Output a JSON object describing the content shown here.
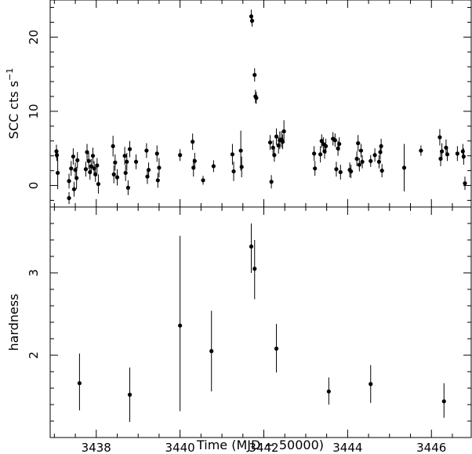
{
  "chart_data": [
    {
      "type": "scatter",
      "ylabel": "SCC cts s",
      "ylabel_superscript": "−1",
      "xlim": [
        3436.9,
        3446.95
      ],
      "ylim": [
        -2.9,
        25.0
      ],
      "yticks": [
        0,
        10,
        20
      ],
      "error_bars": true,
      "points": [
        {
          "x": 3437.05,
          "y": 4.6,
          "e": 0.9
        },
        {
          "x": 3437.08,
          "y": 1.7,
          "e": 2.2
        },
        {
          "x": 3437.06,
          "y": 4.1,
          "e": 0.8
        },
        {
          "x": 3437.35,
          "y": -1.7,
          "e": 0.8
        },
        {
          "x": 3437.35,
          "y": 0.6,
          "e": 1.0
        },
        {
          "x": 3437.4,
          "y": 2.3,
          "e": 1.0
        },
        {
          "x": 3437.45,
          "y": 3.9,
          "e": 1.1
        },
        {
          "x": 3437.47,
          "y": -0.5,
          "e": 1.0
        },
        {
          "x": 3437.5,
          "y": 2.1,
          "e": 1.0
        },
        {
          "x": 3437.53,
          "y": 1.0,
          "e": 1.5
        },
        {
          "x": 3437.55,
          "y": 3.4,
          "e": 1.1
        },
        {
          "x": 3437.75,
          "y": 2.2,
          "e": 1.0
        },
        {
          "x": 3437.78,
          "y": 4.5,
          "e": 1.1
        },
        {
          "x": 3437.82,
          "y": 3.3,
          "e": 1.1
        },
        {
          "x": 3437.85,
          "y": 1.8,
          "e": 1.0
        },
        {
          "x": 3437.88,
          "y": 2.6,
          "e": 1.0
        },
        {
          "x": 3437.92,
          "y": 4.0,
          "e": 1.1
        },
        {
          "x": 3437.95,
          "y": 2.3,
          "e": 1.0
        },
        {
          "x": 3437.98,
          "y": 1.5,
          "e": 1.0
        },
        {
          "x": 3438.02,
          "y": 2.7,
          "e": 1.0
        },
        {
          "x": 3438.05,
          "y": 0.2,
          "e": 1.3
        },
        {
          "x": 3438.4,
          "y": 5.3,
          "e": 1.4
        },
        {
          "x": 3438.42,
          "y": 1.5,
          "e": 1.2
        },
        {
          "x": 3438.45,
          "y": 3.1,
          "e": 1.1
        },
        {
          "x": 3438.5,
          "y": 1.1,
          "e": 1.1
        },
        {
          "x": 3438.68,
          "y": 4.0,
          "e": 1.2
        },
        {
          "x": 3438.7,
          "y": 1.7,
          "e": 1.1
        },
        {
          "x": 3438.73,
          "y": 3.2,
          "e": 1.2
        },
        {
          "x": 3438.76,
          "y": -0.3,
          "e": 1.0
        },
        {
          "x": 3438.8,
          "y": 4.9,
          "e": 1.1
        },
        {
          "x": 3438.95,
          "y": 3.2,
          "e": 1.0
        },
        {
          "x": 3439.2,
          "y": 4.7,
          "e": 1.0
        },
        {
          "x": 3439.22,
          "y": 1.2,
          "e": 1.0
        },
        {
          "x": 3439.25,
          "y": 2.1,
          "e": 1.0
        },
        {
          "x": 3439.45,
          "y": 4.3,
          "e": 1.1
        },
        {
          "x": 3439.47,
          "y": 0.7,
          "e": 1.0
        },
        {
          "x": 3439.5,
          "y": 2.4,
          "e": 1.3
        },
        {
          "x": 3440.0,
          "y": 4.1,
          "e": 0.8
        },
        {
          "x": 3440.3,
          "y": 5.9,
          "e": 1.1
        },
        {
          "x": 3440.32,
          "y": 2.4,
          "e": 1.2
        },
        {
          "x": 3440.35,
          "y": 3.3,
          "e": 1.1
        },
        {
          "x": 3440.55,
          "y": 0.7,
          "e": 0.6
        },
        {
          "x": 3440.8,
          "y": 2.6,
          "e": 0.8
        },
        {
          "x": 3441.25,
          "y": 4.2,
          "e": 1.4
        },
        {
          "x": 3441.28,
          "y": 1.9,
          "e": 1.3
        },
        {
          "x": 3441.45,
          "y": 4.7,
          "e": 2.7
        },
        {
          "x": 3441.47,
          "y": 2.5,
          "e": 1.4
        },
        {
          "x": 3441.7,
          "y": 22.8,
          "e": 0.9
        },
        {
          "x": 3441.72,
          "y": 22.2,
          "e": 0.8
        },
        {
          "x": 3441.78,
          "y": 14.9,
          "e": 0.9
        },
        {
          "x": 3441.8,
          "y": 12.0,
          "e": 0.9
        },
        {
          "x": 3441.82,
          "y": 11.8,
          "e": 0.8
        },
        {
          "x": 3442.15,
          "y": 5.8,
          "e": 1.0
        },
        {
          "x": 3442.18,
          "y": 0.5,
          "e": 0.9
        },
        {
          "x": 3442.22,
          "y": 5.1,
          "e": 1.0
        },
        {
          "x": 3442.25,
          "y": 4.1,
          "e": 0.9
        },
        {
          "x": 3442.3,
          "y": 6.6,
          "e": 1.1
        },
        {
          "x": 3442.35,
          "y": 5.4,
          "e": 1.1
        },
        {
          "x": 3442.38,
          "y": 6.1,
          "e": 1.2
        },
        {
          "x": 3442.42,
          "y": 6.2,
          "e": 1.1
        },
        {
          "x": 3442.45,
          "y": 5.9,
          "e": 1.0
        },
        {
          "x": 3442.48,
          "y": 7.3,
          "e": 1.5
        },
        {
          "x": 3443.2,
          "y": 4.3,
          "e": 1.0
        },
        {
          "x": 3443.22,
          "y": 2.3,
          "e": 1.0
        },
        {
          "x": 3443.35,
          "y": 4.2,
          "e": 1.1
        },
        {
          "x": 3443.38,
          "y": 6.0,
          "e": 0.9
        },
        {
          "x": 3443.42,
          "y": 5.6,
          "e": 0.9
        },
        {
          "x": 3443.45,
          "y": 4.6,
          "e": 1.0
        },
        {
          "x": 3443.48,
          "y": 5.3,
          "e": 1.0
        },
        {
          "x": 3443.65,
          "y": 6.3,
          "e": 0.9
        },
        {
          "x": 3443.7,
          "y": 6.1,
          "e": 0.9
        },
        {
          "x": 3443.73,
          "y": 2.2,
          "e": 1.0
        },
        {
          "x": 3443.77,
          "y": 5.0,
          "e": 1.0
        },
        {
          "x": 3443.8,
          "y": 5.6,
          "e": 0.9
        },
        {
          "x": 3443.83,
          "y": 1.8,
          "e": 1.0
        },
        {
          "x": 3444.05,
          "y": 2.1,
          "e": 1.0
        },
        {
          "x": 3444.08,
          "y": 1.9,
          "e": 0.9
        },
        {
          "x": 3444.22,
          "y": 3.6,
          "e": 1.0
        },
        {
          "x": 3444.25,
          "y": 5.7,
          "e": 1.1
        },
        {
          "x": 3444.28,
          "y": 2.8,
          "e": 0.9
        },
        {
          "x": 3444.32,
          "y": 4.7,
          "e": 0.9
        },
        {
          "x": 3444.35,
          "y": 3.2,
          "e": 0.9
        },
        {
          "x": 3444.55,
          "y": 3.3,
          "e": 0.8
        },
        {
          "x": 3444.65,
          "y": 4.1,
          "e": 0.9
        },
        {
          "x": 3444.75,
          "y": 3.2,
          "e": 0.9
        },
        {
          "x": 3444.78,
          "y": 4.5,
          "e": 1.0
        },
        {
          "x": 3444.8,
          "y": 5.3,
          "e": 1.0
        },
        {
          "x": 3444.82,
          "y": 2.0,
          "e": 0.9
        },
        {
          "x": 3445.35,
          "y": 2.4,
          "e": 3.2
        },
        {
          "x": 3445.75,
          "y": 4.7,
          "e": 0.7
        },
        {
          "x": 3446.2,
          "y": 6.5,
          "e": 1.1
        },
        {
          "x": 3446.22,
          "y": 3.6,
          "e": 1.0
        },
        {
          "x": 3446.25,
          "y": 4.6,
          "e": 1.1
        },
        {
          "x": 3446.35,
          "y": 5.1,
          "e": 1.1
        },
        {
          "x": 3446.38,
          "y": 4.2,
          "e": 0.9
        },
        {
          "x": 3446.62,
          "y": 4.3,
          "e": 1.0
        },
        {
          "x": 3446.75,
          "y": 4.6,
          "e": 1.0
        },
        {
          "x": 3446.77,
          "y": 3.9,
          "e": 1.1
        },
        {
          "x": 3446.8,
          "y": 0.3,
          "e": 0.9
        }
      ]
    },
    {
      "type": "scatter",
      "xlabel": "Time (MJD − 50000)",
      "ylabel": "hardness",
      "xlim": [
        3436.9,
        3446.95
      ],
      "ylim": [
        1.0,
        3.8
      ],
      "xticks": [
        3438,
        3440,
        3442,
        3444,
        3446
      ],
      "yticks": [
        2,
        3
      ],
      "error_bars": true,
      "points": [
        {
          "x": 3437.6,
          "y": 1.66,
          "lo": 1.33,
          "hi": 2.02
        },
        {
          "x": 3438.8,
          "y": 1.52,
          "lo": 1.19,
          "hi": 1.85
        },
        {
          "x": 3440.0,
          "y": 2.36,
          "lo": 1.32,
          "hi": 3.45
        },
        {
          "x": 3440.75,
          "y": 2.05,
          "lo": 1.56,
          "hi": 2.54
        },
        {
          "x": 3441.7,
          "y": 3.32,
          "lo": 3.0,
          "hi": 3.6
        },
        {
          "x": 3441.78,
          "y": 3.05,
          "lo": 2.68,
          "hi": 3.4
        },
        {
          "x": 3442.3,
          "y": 2.08,
          "lo": 1.79,
          "hi": 2.38
        },
        {
          "x": 3443.55,
          "y": 1.56,
          "lo": 1.4,
          "hi": 1.73
        },
        {
          "x": 3444.55,
          "y": 1.65,
          "lo": 1.42,
          "hi": 1.88
        },
        {
          "x": 3446.3,
          "y": 1.44,
          "lo": 1.24,
          "hi": 1.66
        }
      ]
    }
  ]
}
